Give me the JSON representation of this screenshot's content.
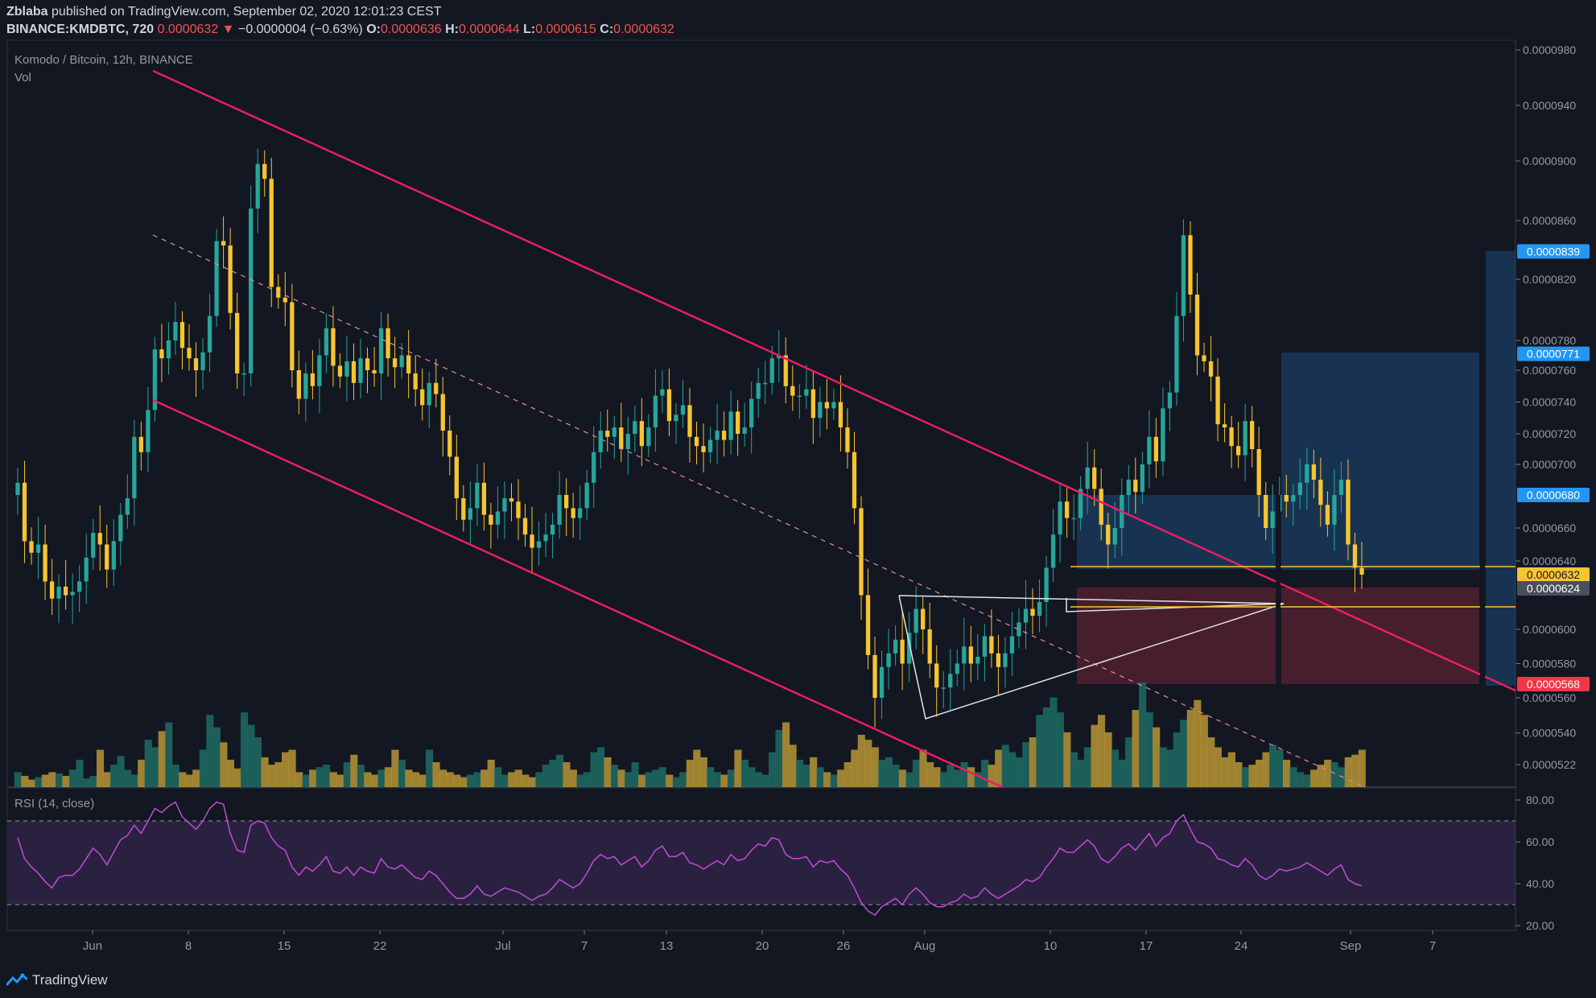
{
  "header": {
    "author": "Zblaba",
    "published_text": "published on TradingView.com, September 02, 2020 12:01:23 CEST",
    "symbol": "BINANCE:KMDBTC, 720",
    "last": "0.0000632",
    "change": "−0.0000004 (−0.63%)",
    "o_label": "O:",
    "o_val": "0.0000636",
    "h_label": "H:",
    "h_val": "0.0000644",
    "l_label": "L:",
    "l_val": "0.0000615",
    "c_label": "C:",
    "c_val": "0.0000632"
  },
  "legend": {
    "title": "Komodo / Bitcoin, 12h, BINANCE",
    "vol": "Vol",
    "rsi": "RSI (14, close)"
  },
  "footer": {
    "brand": "TradingView"
  },
  "colors": {
    "bull": "#26a69a",
    "bear": "#f7c531",
    "bull_dark": "#1f6b63",
    "bear_dark": "#b89535",
    "channel": "#e91e63",
    "rsi": "#c04cd6",
    "blue_zone": "#1e4a7a",
    "red_zone": "#5c2230",
    "label_blue": "#2196f3",
    "label_orange": "#f7c531",
    "label_red": "#f23645",
    "label_gray": "#4a4f5c"
  },
  "chart_data": [
    {
      "type": "candlestick",
      "title": "Komodo / Bitcoin, 12h, BINANCE",
      "x_ticks": [
        "Jun",
        "8",
        "15",
        "22",
        "Jul",
        "7",
        "13",
        "20",
        "26",
        "Aug",
        "10",
        "17",
        "24",
        "Sep",
        "7"
      ],
      "y_ticks": [
        "0.0000980",
        "0.0000940",
        "0.0000900",
        "0.0000860",
        "0.0000820",
        "0.0000780",
        "0.0000760",
        "0.0000740",
        "0.0000720",
        "0.0000700",
        "0.0000660",
        "0.0000640",
        "0.0000600",
        "0.0000580",
        "0.0000560",
        "0.0000540",
        "0.0000522"
      ],
      "price_labels": [
        {
          "text": "0.0000839",
          "kind": "blue"
        },
        {
          "text": "0.0000771",
          "kind": "blue"
        },
        {
          "text": "0.0000680",
          "kind": "blue"
        },
        {
          "text": "0.0000632",
          "kind": "orange"
        },
        {
          "text": "0.0000624",
          "kind": "gray"
        },
        {
          "text": "0.0000568",
          "kind": "red"
        }
      ],
      "open_start": 6.8e-05,
      "closes": [
        6.88e-05,
        6.52e-05,
        6.45e-05,
        6.5e-05,
        6.28e-05,
        6.18e-05,
        6.25e-05,
        6.2e-05,
        6.22e-05,
        6.28e-05,
        6.42e-05,
        6.57e-05,
        6.5e-05,
        6.35e-05,
        6.52e-05,
        6.68e-05,
        6.78e-05,
        7.18e-05,
        7.08e-05,
        7.35e-05,
        7.74e-05,
        7.68e-05,
        7.8e-05,
        7.92e-05,
        7.75e-05,
        7.68e-05,
        7.6e-05,
        7.72e-05,
        7.96e-05,
        8.46e-05,
        8.43e-05,
        7.98e-05,
        7.58e-05,
        7.58e-05,
        8.68e-05,
        8.98e-05,
        8.88e-05,
        8.15e-05,
        8.08e-05,
        8.05e-05,
        7.6e-05,
        7.42e-05,
        7.58e-05,
        7.5e-05,
        7.7e-05,
        7.88e-05,
        7.63e-05,
        7.56e-05,
        7.66e-05,
        7.52e-05,
        7.68e-05,
        7.6e-05,
        7.58e-05,
        7.88e-05,
        7.68e-05,
        7.62e-05,
        7.7e-05,
        7.58e-05,
        7.48e-05,
        7.38e-05,
        7.52e-05,
        7.45e-05,
        7.22e-05,
        7.05e-05,
        6.78e-05,
        6.65e-05,
        6.72e-05,
        6.88e-05,
        6.68e-05,
        6.62e-05,
        6.7e-05,
        6.78e-05,
        6.76e-05,
        6.66e-05,
        6.56e-05,
        6.48e-05,
        6.52e-05,
        6.56e-05,
        6.62e-05,
        6.8e-05,
        6.72e-05,
        6.66e-05,
        6.72e-05,
        6.88e-05,
        7.08e-05,
        7.22e-05,
        7.18e-05,
        7.24e-05,
        7.1e-05,
        7.2e-05,
        7.28e-05,
        7.12e-05,
        7.24e-05,
        7.44e-05,
        7.48e-05,
        7.28e-05,
        7.32e-05,
        7.38e-05,
        7.18e-05,
        7.12e-05,
        7.08e-05,
        7.16e-05,
        7.22e-05,
        7.16e-05,
        7.34e-05,
        7.2e-05,
        7.24e-05,
        7.42e-05,
        7.52e-05,
        7.52e-05,
        7.68e-05,
        7.7e-05,
        7.5e-05,
        7.44e-05,
        7.44e-05,
        7.48e-05,
        7.3e-05,
        7.4e-05,
        7.36e-05,
        7.4e-05,
        7.24e-05,
        7.08e-05,
        6.72e-05,
        6.2e-05,
        5.85e-05,
        5.6e-05,
        5.78e-05,
        5.86e-05,
        5.94e-05,
        5.8e-05,
        5.98e-05,
        6.12e-05,
        6e-05,
        5.8e-05,
        5.66e-05,
        5.66e-05,
        5.74e-05,
        5.8e-05,
        5.9e-05,
        5.8e-05,
        5.84e-05,
        5.96e-05,
        5.86e-05,
        5.78e-05,
        5.86e-05,
        5.96e-05,
        6.04e-05,
        6.12e-05,
        6.08e-05,
        6.16e-05,
        6.36e-05,
        6.56e-05,
        6.76e-05,
        6.66e-05,
        6.66e-05,
        6.84e-05,
        6.98e-05,
        6.84e-05,
        6.62e-05,
        6.5e-05,
        6.6e-05,
        6.8e-05,
        6.9e-05,
        6.82e-05,
        7e-05,
        7.18e-05,
        7.02e-05,
        7.36e-05,
        7.46e-05,
        7.96e-05,
        8.5e-05,
        8.1e-05,
        7.7e-05,
        7.66e-05,
        7.56e-05,
        7.26e-05,
        7.24e-05,
        7.12e-05,
        7.06e-05,
        7.28e-05,
        7.1e-05,
        6.8e-05,
        6.6e-05,
        6.7e-05,
        6.8e-05,
        6.76e-05,
        6.8e-05,
        6.88e-05,
        7e-05,
        6.9e-05,
        6.74e-05,
        6.62e-05,
        6.8e-05,
        6.9e-05,
        6.5e-05,
        6.36e-05,
        6.32e-05
      ]
    },
    {
      "type": "line",
      "title": "RSI (14, close)",
      "y_ticks": [
        "80.00",
        "60.00",
        "40.00",
        "20.00"
      ],
      "ylim": [
        20,
        80
      ],
      "bands": [
        30,
        70
      ],
      "values": [
        62,
        52,
        48,
        45,
        41,
        38,
        43,
        44,
        44,
        47,
        52,
        57,
        54,
        49,
        55,
        61,
        63,
        68,
        64,
        70,
        76,
        74,
        77,
        79,
        72,
        69,
        66,
        70,
        76,
        79,
        78,
        64,
        56,
        55,
        68,
        70,
        69,
        62,
        58,
        56,
        48,
        44,
        48,
        46,
        49,
        53,
        46,
        45,
        48,
        44,
        48,
        46,
        45,
        52,
        48,
        47,
        49,
        46,
        43,
        42,
        46,
        44,
        40,
        36,
        33,
        33,
        35,
        39,
        35,
        34,
        36,
        38,
        37,
        36,
        34,
        32,
        34,
        35,
        38,
        42,
        40,
        38,
        40,
        45,
        51,
        54,
        52,
        53,
        49,
        51,
        53,
        48,
        51,
        56,
        58,
        53,
        53,
        55,
        50,
        49,
        47,
        49,
        51,
        49,
        54,
        51,
        52,
        56,
        59,
        58,
        62,
        61,
        54,
        52,
        52,
        53,
        48,
        51,
        50,
        51,
        47,
        44,
        38,
        31,
        27,
        25,
        29,
        31,
        33,
        30,
        35,
        38,
        35,
        31,
        29,
        29,
        31,
        32,
        35,
        33,
        34,
        38,
        35,
        33,
        35,
        37,
        39,
        42,
        41,
        43,
        48,
        52,
        57,
        55,
        55,
        58,
        61,
        58,
        52,
        50,
        53,
        57,
        59,
        56,
        60,
        64,
        58,
        62,
        64,
        70,
        73,
        66,
        60,
        59,
        57,
        52,
        51,
        49,
        48,
        52,
        49,
        44,
        42,
        44,
        47,
        46,
        47,
        48,
        50,
        48,
        46,
        44,
        47,
        49,
        42,
        40,
        39
      ]
    },
    {
      "type": "bar",
      "title": "Vol",
      "values": [
        12,
        9,
        6,
        8,
        10,
        12,
        11,
        9,
        14,
        22,
        7,
        9,
        30,
        12,
        18,
        25,
        14,
        10,
        22,
        38,
        32,
        45,
        52,
        18,
        12,
        10,
        14,
        30,
        58,
        48,
        36,
        22,
        15,
        60,
        50,
        40,
        24,
        18,
        20,
        28,
        30,
        12,
        10,
        14,
        16,
        18,
        12,
        10,
        20,
        26,
        18,
        12,
        10,
        14,
        16,
        30,
        22,
        14,
        12,
        10,
        30,
        20,
        14,
        12,
        10,
        8,
        10,
        12,
        14,
        22,
        16,
        10,
        12,
        14,
        10,
        8,
        12,
        18,
        22,
        26,
        20,
        14,
        10,
        12,
        28,
        32,
        24,
        18,
        14,
        12,
        20,
        10,
        12,
        14,
        16,
        10,
        8,
        12,
        22,
        30,
        24,
        16,
        12,
        10,
        14,
        30,
        22,
        16,
        12,
        10,
        28,
        46,
        52,
        34,
        22,
        18,
        24,
        16,
        12,
        10,
        14,
        20,
        30,
        42,
        38,
        32,
        22,
        24,
        18,
        14,
        12,
        22,
        30,
        20,
        16,
        12,
        18,
        14,
        20,
        16,
        12,
        22,
        18,
        30,
        34,
        28,
        24,
        36,
        40,
        58,
        64,
        72,
        60,
        44,
        28,
        22,
        32,
        50,
        58,
        44,
        30,
        22,
        40,
        62,
        84,
        60,
        48,
        32,
        30,
        44,
        54,
        62,
        70,
        58,
        40,
        32,
        24,
        28,
        20,
        16,
        18,
        22,
        28,
        34,
        30,
        22,
        16,
        12,
        10,
        14,
        18,
        22,
        20,
        16,
        24,
        26,
        30
      ]
    }
  ]
}
